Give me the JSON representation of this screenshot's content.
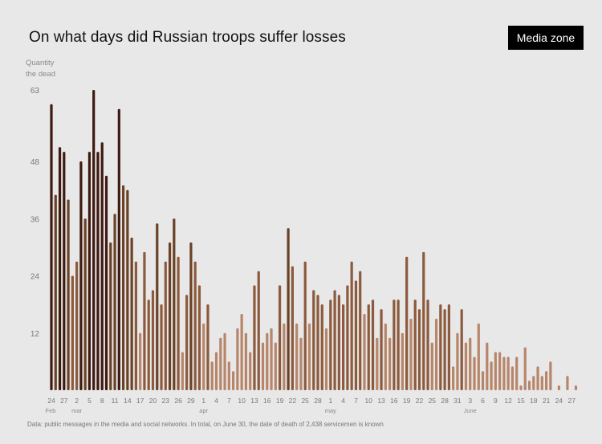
{
  "logo": "Media zone",
  "chart_data": {
    "type": "bar",
    "title": "On what days did Russian troops suffer losses",
    "ylabel_lines": [
      "Quantity",
      "the dead"
    ],
    "xlabel": "",
    "ylim": [
      0,
      63
    ],
    "yticks": [
      12,
      24,
      36,
      48,
      63
    ],
    "start_date": "Feb 24",
    "x_tick_labels": [
      {
        "day_index": 0,
        "label": "24"
      },
      {
        "day_index": 3,
        "label": "27"
      },
      {
        "day_index": 6,
        "label": "2"
      },
      {
        "day_index": 9,
        "label": "5"
      },
      {
        "day_index": 12,
        "label": "8"
      },
      {
        "day_index": 15,
        "label": "11"
      },
      {
        "day_index": 18,
        "label": "14"
      },
      {
        "day_index": 21,
        "label": "17"
      },
      {
        "day_index": 24,
        "label": "20"
      },
      {
        "day_index": 27,
        "label": "23"
      },
      {
        "day_index": 30,
        "label": "26"
      },
      {
        "day_index": 33,
        "label": "29"
      },
      {
        "day_index": 36,
        "label": "1"
      },
      {
        "day_index": 39,
        "label": "4"
      },
      {
        "day_index": 42,
        "label": "7"
      },
      {
        "day_index": 45,
        "label": "10"
      },
      {
        "day_index": 48,
        "label": "13"
      },
      {
        "day_index": 51,
        "label": "16"
      },
      {
        "day_index": 54,
        "label": "19"
      },
      {
        "day_index": 57,
        "label": "22"
      },
      {
        "day_index": 60,
        "label": "25"
      },
      {
        "day_index": 63,
        "label": "28"
      },
      {
        "day_index": 66,
        "label": "1"
      },
      {
        "day_index": 69,
        "label": "4"
      },
      {
        "day_index": 72,
        "label": "7"
      },
      {
        "day_index": 75,
        "label": "10"
      },
      {
        "day_index": 78,
        "label": "13"
      },
      {
        "day_index": 81,
        "label": "16"
      },
      {
        "day_index": 84,
        "label": "19"
      },
      {
        "day_index": 87,
        "label": "22"
      },
      {
        "day_index": 90,
        "label": "25"
      },
      {
        "day_index": 93,
        "label": "28"
      },
      {
        "day_index": 96,
        "label": "31"
      },
      {
        "day_index": 99,
        "label": "3"
      },
      {
        "day_index": 102,
        "label": "6"
      },
      {
        "day_index": 105,
        "label": "9"
      },
      {
        "day_index": 108,
        "label": "12"
      },
      {
        "day_index": 111,
        "label": "15"
      },
      {
        "day_index": 114,
        "label": "18"
      },
      {
        "day_index": 117,
        "label": "21"
      },
      {
        "day_index": 120,
        "label": "24"
      },
      {
        "day_index": 123,
        "label": "27"
      }
    ],
    "month_labels": [
      {
        "day_index": 0,
        "label": "Feb"
      },
      {
        "day_index": 6,
        "label": "mar"
      },
      {
        "day_index": 36,
        "label": "apr"
      },
      {
        "day_index": 66,
        "label": "may"
      },
      {
        "day_index": 99,
        "label": "June"
      }
    ],
    "values": [
      60,
      41,
      51,
      50,
      40,
      24,
      27,
      48,
      36,
      50,
      63,
      50,
      52,
      45,
      31,
      37,
      59,
      43,
      42,
      32,
      27,
      12,
      29,
      19,
      21,
      35,
      18,
      27,
      31,
      36,
      28,
      8,
      20,
      31,
      27,
      22,
      14,
      18,
      6,
      8,
      11,
      12,
      6,
      4,
      13,
      16,
      12,
      8,
      22,
      25,
      10,
      12,
      13,
      10,
      22,
      14,
      34,
      26,
      14,
      11,
      27,
      14,
      21,
      20,
      18,
      13,
      19,
      21,
      20,
      18,
      22,
      27,
      23,
      25,
      16,
      18,
      19,
      11,
      17,
      14,
      11,
      19,
      19,
      12,
      28,
      15,
      19,
      17,
      29,
      19,
      10,
      15,
      18,
      17,
      18,
      5,
      12,
      17,
      10,
      11,
      7,
      14,
      4,
      10,
      6,
      8,
      8,
      7,
      7,
      5,
      7,
      1,
      9,
      2,
      3,
      5,
      3,
      4,
      6,
      0,
      1,
      0,
      3,
      0,
      1,
      0,
      0
    ],
    "colors": {
      "darkest": "#3e1a10",
      "dark": "#6a4226",
      "mid": "#8c5a3c",
      "light": "#b7866a"
    },
    "footnote": "Data: public messages in the media and social networks. In total, on June 30, the date of death of 2,438 servicemen is known"
  }
}
